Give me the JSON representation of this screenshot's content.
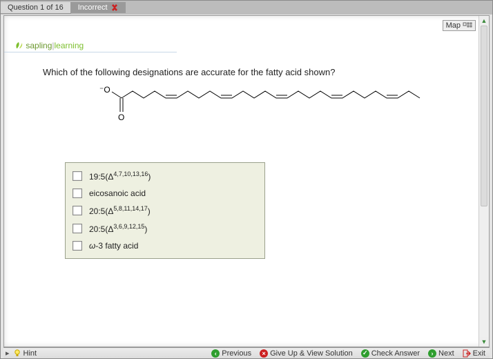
{
  "tab": {
    "label": "Question 1 of 16",
    "status": "Incorrect"
  },
  "map_label": "Map",
  "brand": {
    "part1": "sapling",
    "part2": "learning"
  },
  "question_text": "Which of the following designations are accurate for the fatty acid shown?",
  "molecule": {
    "label_neg": "−O",
    "label_o": "O",
    "stroke": "#000000",
    "stroke_width": 1
  },
  "options": [
    {
      "pre": "19:5(Δ",
      "sup": "4,7,10,13,16",
      "post": ")"
    },
    {
      "text": "eicosanoic acid"
    },
    {
      "pre": "20:5(Δ",
      "sup": "5,8,11,14,17",
      "post": ")"
    },
    {
      "pre": "20:5(Δ",
      "sup": "3,6,9,12,15",
      "post": ")"
    },
    {
      "text": "ω-3 fatty acid"
    }
  ],
  "footer": {
    "hint": "Hint",
    "previous": "Previous",
    "giveup": "Give Up & View Solution",
    "check": "Check Answer",
    "next": "Next",
    "exit": "Exit"
  },
  "colors": {
    "box_bg": "#eef0e1",
    "box_border": "#9aa08b"
  }
}
